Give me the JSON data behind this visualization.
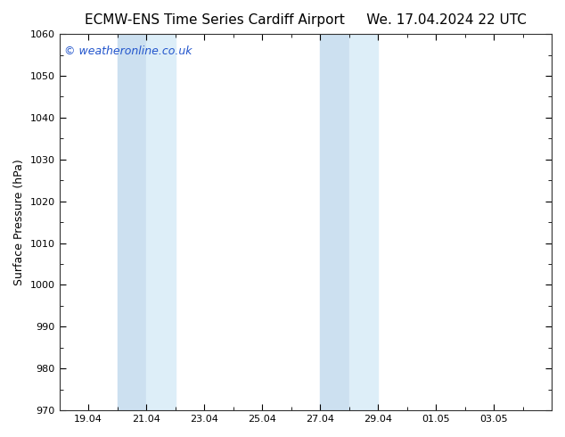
{
  "title_left": "ECMW-ENS Time Series Cardiff Airport",
  "title_right": "We. 17.04.2024 22 UTC",
  "ylabel": "Surface Pressure (hPa)",
  "ylim": [
    970,
    1060
  ],
  "yticks": [
    970,
    980,
    990,
    1000,
    1010,
    1020,
    1030,
    1040,
    1050,
    1060
  ],
  "xtick_labels": [
    "19.04",
    "21.04",
    "23.04",
    "25.04",
    "27.04",
    "29.04",
    "01.05",
    "03.05"
  ],
  "xtick_positions": [
    19,
    21,
    23,
    25,
    27,
    29,
    31,
    33
  ],
  "x_min": 18.0,
  "x_max": 35.0,
  "shaded_bands": [
    {
      "x_start": 20.0,
      "x_end": 21.0,
      "color": "#cce0f0"
    },
    {
      "x_start": 21.0,
      "x_end": 22.0,
      "color": "#ddeef8"
    },
    {
      "x_start": 27.0,
      "x_end": 28.0,
      "color": "#cce0f0"
    },
    {
      "x_start": 28.0,
      "x_end": 29.0,
      "color": "#ddeef8"
    }
  ],
  "watermark_text": "© weatheronline.co.uk",
  "watermark_color": "#2255cc",
  "watermark_fontsize": 9,
  "bg_color": "#ffffff",
  "title_fontsize": 11,
  "axis_label_fontsize": 9,
  "tick_fontsize": 8,
  "spine_color": "#333333"
}
